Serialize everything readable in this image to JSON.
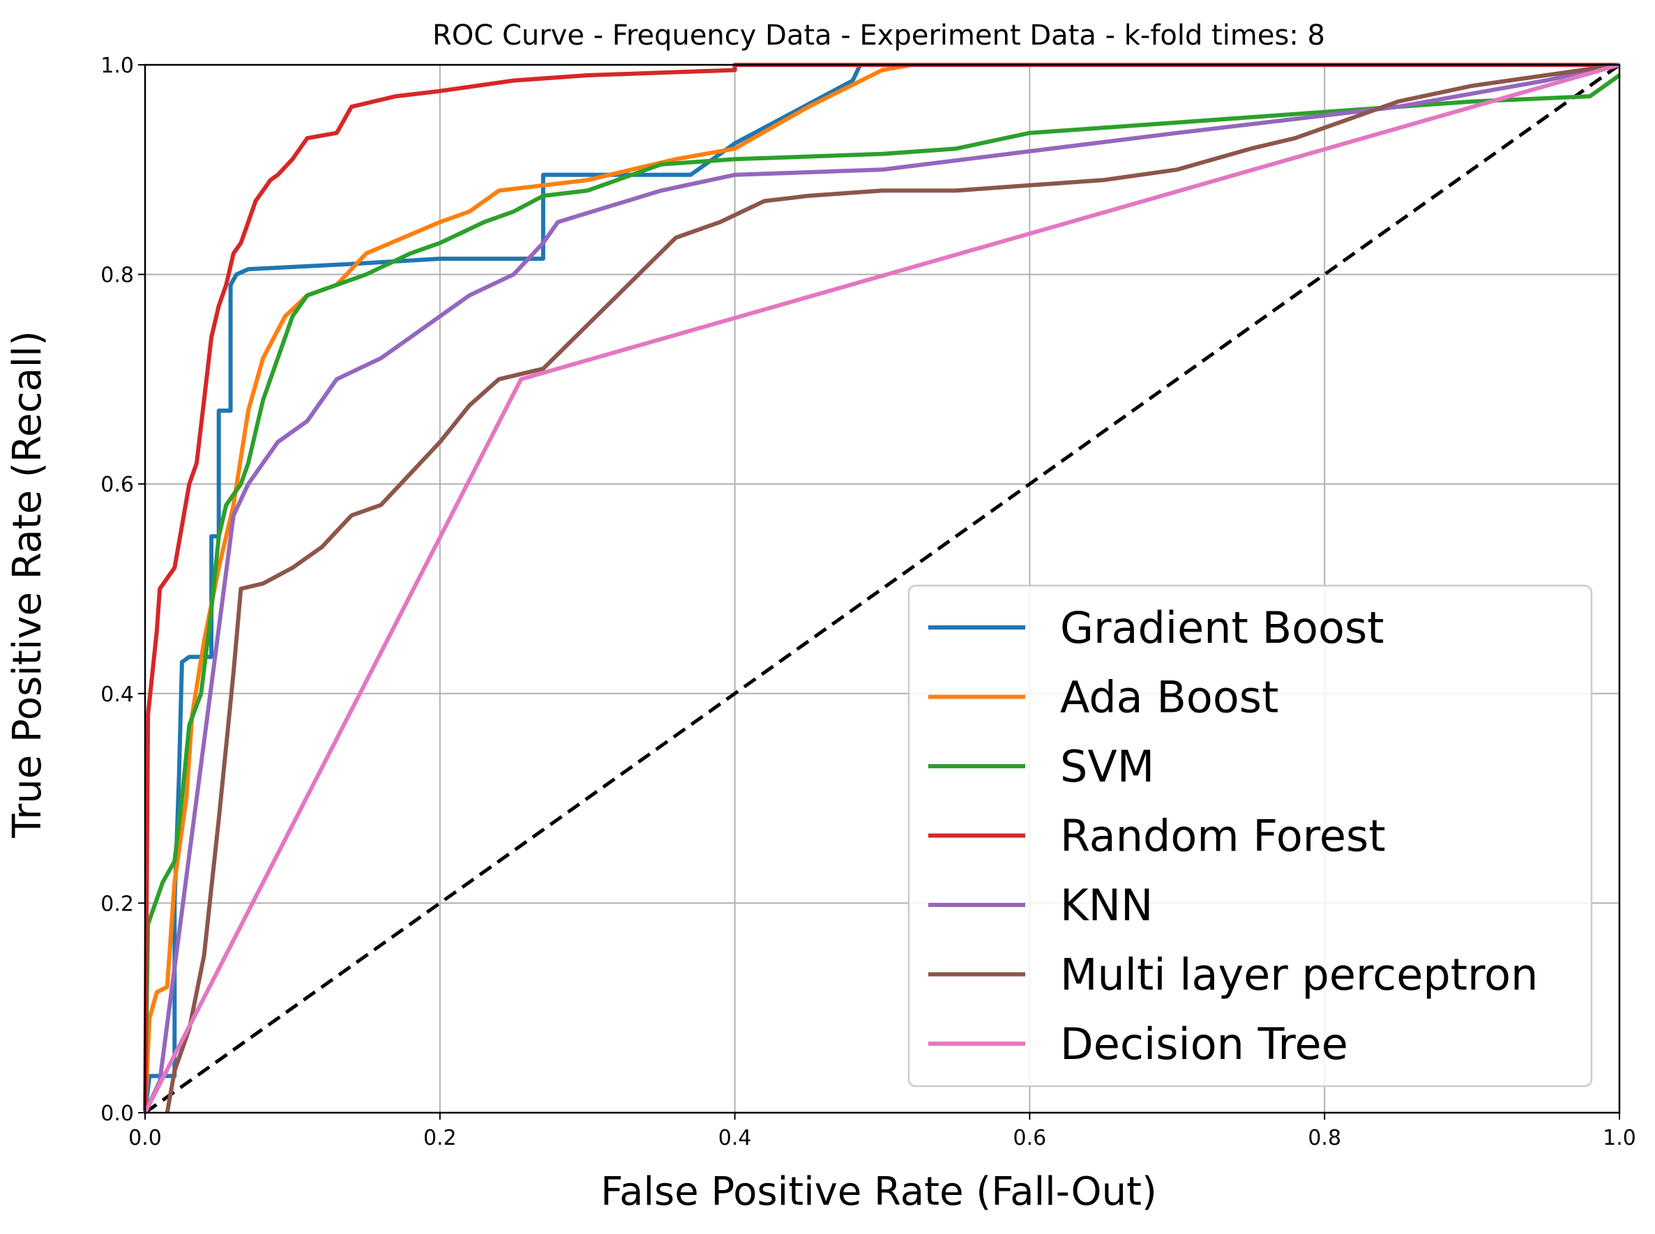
{
  "chart_data": {
    "type": "line",
    "title": "ROC Curve - Frequency Data - Experiment Data - k-fold times: 8",
    "xlabel": "False Positive Rate (Fall-Out)",
    "ylabel": "True Positive Rate (Recall)",
    "xlim": [
      0,
      1
    ],
    "ylim": [
      0,
      1
    ],
    "xticks": [
      "0.0",
      "0.2",
      "0.4",
      "0.6",
      "0.8",
      "1.0"
    ],
    "yticks": [
      "0.0",
      "0.2",
      "0.4",
      "0.6",
      "0.8",
      "1.0"
    ],
    "grid": true,
    "legend_position": "lower-right",
    "series": [
      {
        "name": "Gradient Boost",
        "color": "#1f77b4",
        "points": [
          [
            0,
            0
          ],
          [
            0.003,
            0.035
          ],
          [
            0.02,
            0.035
          ],
          [
            0.02,
            0.2
          ],
          [
            0.023,
            0.32
          ],
          [
            0.025,
            0.43
          ],
          [
            0.03,
            0.435
          ],
          [
            0.045,
            0.435
          ],
          [
            0.045,
            0.55
          ],
          [
            0.05,
            0.55
          ],
          [
            0.05,
            0.67
          ],
          [
            0.058,
            0.67
          ],
          [
            0.058,
            0.79
          ],
          [
            0.062,
            0.8
          ],
          [
            0.07,
            0.805
          ],
          [
            0.14,
            0.81
          ],
          [
            0.2,
            0.815
          ],
          [
            0.27,
            0.815
          ],
          [
            0.27,
            0.895
          ],
          [
            0.37,
            0.895
          ],
          [
            0.4,
            0.925
          ],
          [
            0.48,
            0.985
          ],
          [
            0.485,
            1.0
          ],
          [
            1.0,
            1.0
          ]
        ]
      },
      {
        "name": "Ada Boost",
        "color": "#ff7f0e",
        "points": [
          [
            0,
            0
          ],
          [
            0.003,
            0.09
          ],
          [
            0.008,
            0.115
          ],
          [
            0.015,
            0.12
          ],
          [
            0.02,
            0.22
          ],
          [
            0.028,
            0.3
          ],
          [
            0.032,
            0.38
          ],
          [
            0.04,
            0.45
          ],
          [
            0.05,
            0.52
          ],
          [
            0.06,
            0.58
          ],
          [
            0.07,
            0.67
          ],
          [
            0.08,
            0.72
          ],
          [
            0.095,
            0.76
          ],
          [
            0.11,
            0.78
          ],
          [
            0.13,
            0.79
          ],
          [
            0.15,
            0.82
          ],
          [
            0.2,
            0.85
          ],
          [
            0.22,
            0.86
          ],
          [
            0.24,
            0.88
          ],
          [
            0.3,
            0.89
          ],
          [
            0.36,
            0.91
          ],
          [
            0.4,
            0.92
          ],
          [
            0.45,
            0.96
          ],
          [
            0.5,
            0.995
          ],
          [
            0.52,
            1.0
          ],
          [
            0.81,
            1.0
          ]
        ]
      },
      {
        "name": "SVM",
        "color": "#2ca02c",
        "points": [
          [
            0,
            0
          ],
          [
            0.002,
            0.18
          ],
          [
            0.012,
            0.22
          ],
          [
            0.02,
            0.24
          ],
          [
            0.025,
            0.3
          ],
          [
            0.03,
            0.37
          ],
          [
            0.038,
            0.4
          ],
          [
            0.045,
            0.48
          ],
          [
            0.05,
            0.55
          ],
          [
            0.055,
            0.58
          ],
          [
            0.065,
            0.6
          ],
          [
            0.07,
            0.62
          ],
          [
            0.08,
            0.68
          ],
          [
            0.09,
            0.72
          ],
          [
            0.1,
            0.76
          ],
          [
            0.11,
            0.78
          ],
          [
            0.15,
            0.8
          ],
          [
            0.18,
            0.82
          ],
          [
            0.2,
            0.83
          ],
          [
            0.23,
            0.85
          ],
          [
            0.25,
            0.86
          ],
          [
            0.27,
            0.875
          ],
          [
            0.3,
            0.88
          ],
          [
            0.35,
            0.905
          ],
          [
            0.4,
            0.91
          ],
          [
            0.5,
            0.915
          ],
          [
            0.55,
            0.92
          ],
          [
            0.6,
            0.935
          ],
          [
            0.7,
            0.945
          ],
          [
            0.8,
            0.955
          ],
          [
            0.9,
            0.965
          ],
          [
            0.98,
            0.97
          ],
          [
            1.0,
            0.99
          ]
        ]
      },
      {
        "name": "Random Forest",
        "color": "#d62728",
        "points": [
          [
            0,
            0.0
          ],
          [
            0.002,
            0.38
          ],
          [
            0.005,
            0.42
          ],
          [
            0.008,
            0.46
          ],
          [
            0.01,
            0.5
          ],
          [
            0.02,
            0.52
          ],
          [
            0.025,
            0.56
          ],
          [
            0.03,
            0.6
          ],
          [
            0.035,
            0.62
          ],
          [
            0.04,
            0.68
          ],
          [
            0.045,
            0.74
          ],
          [
            0.05,
            0.77
          ],
          [
            0.055,
            0.79
          ],
          [
            0.06,
            0.82
          ],
          [
            0.065,
            0.83
          ],
          [
            0.07,
            0.85
          ],
          [
            0.075,
            0.87
          ],
          [
            0.08,
            0.88
          ],
          [
            0.085,
            0.89
          ],
          [
            0.09,
            0.895
          ],
          [
            0.1,
            0.91
          ],
          [
            0.11,
            0.93
          ],
          [
            0.13,
            0.935
          ],
          [
            0.14,
            0.96
          ],
          [
            0.17,
            0.97
          ],
          [
            0.2,
            0.975
          ],
          [
            0.25,
            0.985
          ],
          [
            0.3,
            0.99
          ],
          [
            0.4,
            0.995
          ],
          [
            0.4,
            1.0
          ],
          [
            1.0,
            1.0
          ]
        ]
      },
      {
        "name": "KNN",
        "color": "#9467bd",
        "points": [
          [
            0,
            0
          ],
          [
            0.01,
            0.03
          ],
          [
            0.06,
            0.57
          ],
          [
            0.07,
            0.6
          ],
          [
            0.09,
            0.64
          ],
          [
            0.11,
            0.66
          ],
          [
            0.13,
            0.7
          ],
          [
            0.16,
            0.72
          ],
          [
            0.18,
            0.74
          ],
          [
            0.2,
            0.76
          ],
          [
            0.22,
            0.78
          ],
          [
            0.25,
            0.8
          ],
          [
            0.27,
            0.83
          ],
          [
            0.28,
            0.85
          ],
          [
            0.35,
            0.88
          ],
          [
            0.4,
            0.895
          ],
          [
            0.5,
            0.9
          ],
          [
            0.7,
            0.935
          ],
          [
            0.85,
            0.96
          ],
          [
            0.95,
            0.985
          ],
          [
            1.0,
            1.0
          ]
        ]
      },
      {
        "name": "Multi layer perceptron",
        "color": "#8c564b",
        "points": [
          [
            0.015,
            0.0
          ],
          [
            0.02,
            0.04
          ],
          [
            0.03,
            0.08
          ],
          [
            0.04,
            0.15
          ],
          [
            0.05,
            0.28
          ],
          [
            0.055,
            0.35
          ],
          [
            0.06,
            0.42
          ],
          [
            0.065,
            0.5
          ],
          [
            0.08,
            0.505
          ],
          [
            0.1,
            0.52
          ],
          [
            0.12,
            0.54
          ],
          [
            0.14,
            0.57
          ],
          [
            0.16,
            0.58
          ],
          [
            0.18,
            0.61
          ],
          [
            0.2,
            0.64
          ],
          [
            0.22,
            0.675
          ],
          [
            0.24,
            0.7
          ],
          [
            0.27,
            0.71
          ],
          [
            0.36,
            0.835
          ],
          [
            0.39,
            0.85
          ],
          [
            0.42,
            0.87
          ],
          [
            0.45,
            0.875
          ],
          [
            0.5,
            0.88
          ],
          [
            0.55,
            0.88
          ],
          [
            0.6,
            0.885
          ],
          [
            0.65,
            0.89
          ],
          [
            0.7,
            0.9
          ],
          [
            0.75,
            0.92
          ],
          [
            0.78,
            0.93
          ],
          [
            0.8,
            0.94
          ],
          [
            0.82,
            0.95
          ],
          [
            0.85,
            0.965
          ],
          [
            0.9,
            0.98
          ],
          [
            0.95,
            0.99
          ],
          [
            1.0,
            1.0
          ]
        ]
      },
      {
        "name": "Decision Tree",
        "color": "#e377c2",
        "points": [
          [
            0,
            0
          ],
          [
            0.255,
            0.7
          ],
          [
            1.0,
            1.0
          ]
        ]
      }
    ],
    "reference_line": {
      "points": [
        [
          0,
          0
        ],
        [
          1,
          1
        ]
      ],
      "color": "#000000",
      "style": "dashed"
    }
  }
}
